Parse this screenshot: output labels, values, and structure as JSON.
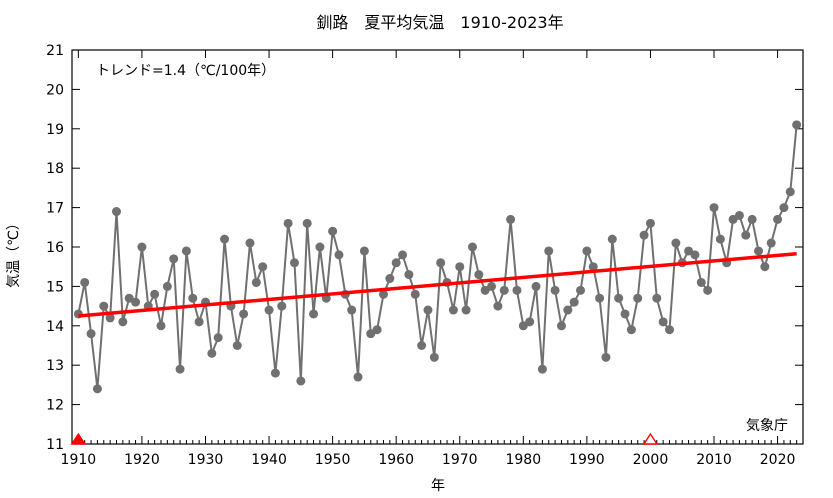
{
  "chart_data": {
    "type": "line",
    "title": "釧路　夏平均気温　1910-2023年",
    "xlabel": "年",
    "ylabel": "気温（℃）",
    "xlim": [
      1909,
      2024
    ],
    "ylim": [
      11,
      21
    ],
    "x_ticks": [
      1910,
      1920,
      1930,
      1940,
      1950,
      1960,
      1970,
      1980,
      1990,
      2000,
      2010,
      2020
    ],
    "y_ticks": [
      11,
      12,
      13,
      14,
      15,
      16,
      17,
      18,
      19,
      20,
      21
    ],
    "trend_label": "トレンド=1.4（℃/100年）",
    "source_label": "気象庁",
    "grid": false,
    "colors": {
      "series": "#707070",
      "trend": "#ff0000",
      "marker_change": "#ff0000"
    },
    "trend": {
      "x": [
        1910,
        2023
      ],
      "y": [
        14.25,
        15.83
      ]
    },
    "station_change_markers": [
      {
        "x": 1910,
        "filled": true
      },
      {
        "x": 2000,
        "filled": false
      }
    ],
    "series": [
      {
        "x": [
          1910,
          1911,
          1912,
          1913,
          1914,
          1915,
          1916,
          1917,
          1918,
          1919,
          1920,
          1921,
          1922,
          1923,
          1924,
          1925,
          1926,
          1927,
          1928,
          1929,
          1930,
          1931,
          1932,
          1933,
          1934,
          1935,
          1936,
          1937,
          1938,
          1939,
          1940,
          1941,
          1942,
          1943,
          1944,
          1945,
          1946,
          1947,
          1948,
          1949,
          1950,
          1951,
          1952,
          1953,
          1954,
          1955,
          1956,
          1957,
          1958,
          1959,
          1960,
          1961,
          1962,
          1963,
          1964,
          1965,
          1966,
          1967,
          1968,
          1969,
          1970,
          1971,
          1972,
          1973,
          1974,
          1975,
          1976,
          1977,
          1978,
          1979,
          1980,
          1981,
          1982,
          1983,
          1984,
          1985,
          1986,
          1987,
          1988,
          1989,
          1990,
          1991,
          1992,
          1993,
          1994,
          1995,
          1996,
          1997,
          1998,
          1999,
          2000,
          2001,
          2002,
          2003,
          2004,
          2005,
          2006,
          2007,
          2008,
          2009,
          2010,
          2011,
          2012,
          2013,
          2014,
          2015,
          2016,
          2017,
          2018,
          2019,
          2020,
          2021,
          2022,
          2023
        ],
        "y": [
          14.3,
          15.1,
          13.8,
          12.4,
          14.5,
          14.2,
          16.9,
          14.1,
          14.7,
          14.6,
          16.0,
          14.5,
          14.8,
          14.0,
          15.0,
          15.7,
          12.9,
          15.9,
          14.7,
          14.1,
          14.6,
          13.3,
          13.7,
          16.2,
          14.5,
          13.5,
          14.3,
          16.1,
          15.1,
          15.5,
          14.4,
          12.8,
          14.5,
          16.6,
          15.6,
          12.6,
          16.6,
          14.3,
          16.0,
          14.7,
          16.4,
          15.8,
          14.8,
          14.4,
          12.7,
          15.9,
          13.8,
          13.9,
          14.8,
          15.2,
          15.6,
          15.8,
          15.3,
          14.8,
          13.5,
          14.4,
          13.2,
          15.6,
          15.1,
          14.4,
          15.5,
          14.4,
          16.0,
          15.3,
          14.9,
          15.0,
          14.5,
          14.9,
          16.7,
          14.9,
          14.0,
          14.1,
          15.0,
          12.9,
          15.9,
          14.9,
          14.0,
          14.4,
          14.6,
          14.9,
          15.9,
          15.5,
          14.7,
          13.2,
          16.2,
          14.7,
          14.3,
          13.9,
          14.7,
          16.3,
          16.6,
          14.7,
          14.1,
          13.9,
          16.1,
          15.6,
          15.9,
          15.8,
          15.1,
          14.9,
          17.0,
          16.2,
          15.6,
          16.7,
          16.8,
          16.3,
          16.7,
          15.9,
          15.5,
          16.1,
          16.7,
          17.0,
          17.4,
          19.1
        ]
      }
    ]
  }
}
